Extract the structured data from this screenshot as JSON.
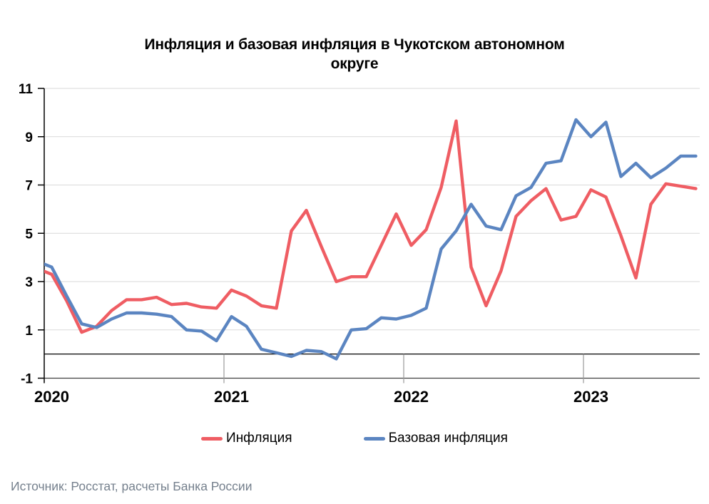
{
  "title": {
    "line1": "Инфляция и базовая инфляция в Чукотском автономном",
    "line2": "округе"
  },
  "legend": [
    {
      "label": "Инфляция",
      "color": "#ef5d63"
    },
    {
      "label": "Базовая инфляция",
      "color": "#5b85c1"
    }
  ],
  "source": "Источник: Росстат, расчеты Банка России",
  "chart_data": {
    "type": "line",
    "title": "Инфляция и базовая инфляция в Чукотском автономном округе",
    "x": [
      "2019-12",
      "2020-01",
      "2020-02",
      "2020-03",
      "2020-04",
      "2020-05",
      "2020-06",
      "2020-07",
      "2020-08",
      "2020-09",
      "2020-10",
      "2020-11",
      "2020-12",
      "2021-01",
      "2021-02",
      "2021-03",
      "2021-04",
      "2021-05",
      "2021-06",
      "2021-07",
      "2021-08",
      "2021-09",
      "2021-10",
      "2021-11",
      "2021-12",
      "2022-01",
      "2022-02",
      "2022-03",
      "2022-04",
      "2022-05",
      "2022-06",
      "2022-07",
      "2022-08",
      "2022-09",
      "2022-10",
      "2022-11",
      "2022-12",
      "2023-01",
      "2023-02",
      "2023-03",
      "2023-04",
      "2023-05",
      "2023-06",
      "2023-07",
      "2023-08"
    ],
    "series": [
      {
        "name": "Инфляция",
        "color": "#ef5d63",
        "values": [
          3.55,
          3.3,
          2.2,
          0.9,
          1.15,
          1.8,
          2.25,
          2.25,
          2.35,
          2.05,
          2.1,
          1.95,
          1.9,
          2.65,
          2.4,
          2.0,
          1.9,
          5.1,
          5.95,
          4.45,
          3.0,
          3.2,
          3.2,
          4.5,
          5.8,
          4.5,
          5.15,
          6.9,
          9.65,
          3.6,
          2.0,
          3.45,
          5.7,
          6.35,
          6.85,
          5.55,
          5.7,
          6.8,
          6.5,
          4.9,
          3.15,
          6.2,
          7.05,
          6.95,
          6.85
        ]
      },
      {
        "name": "Базовая инфляция",
        "color": "#5b85c1",
        "values": [
          3.85,
          3.6,
          2.4,
          1.25,
          1.1,
          1.45,
          1.7,
          1.7,
          1.65,
          1.55,
          1.0,
          0.95,
          0.55,
          1.55,
          1.15,
          0.2,
          0.05,
          -0.1,
          0.15,
          0.1,
          -0.2,
          1.0,
          1.05,
          1.5,
          1.45,
          1.6,
          1.9,
          4.35,
          5.1,
          6.2,
          5.3,
          5.15,
          6.55,
          6.9,
          7.9,
          8.0,
          9.7,
          9.0,
          9.6,
          7.35,
          7.9,
          7.3,
          7.7,
          8.2,
          8.2
        ]
      }
    ],
    "ylim": [
      -1,
      11
    ],
    "yticks": [
      11,
      9,
      7,
      5,
      3,
      1,
      -1
    ],
    "xticks": [
      "2020",
      "2021",
      "2022",
      "2023"
    ],
    "grid": "horizontal",
    "zero_line": true,
    "legend_position": "bottom"
  }
}
